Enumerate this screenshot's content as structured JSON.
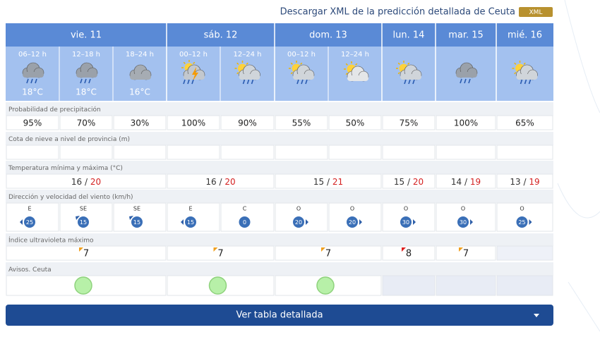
{
  "header": {
    "link": "Descargar XML de la predicción detallada de Ceuta",
    "badge": "XML"
  },
  "table": {
    "row_labels": [
      "Probabilidad de precipitación",
      "Cota de nieve a nivel de provincia (m)",
      "Temperatura mínima y máxima (°C)",
      "Dirección y velocidad del viento (km/h)",
      "Índice ultravioleta máximo",
      "Avisos. Ceuta"
    ],
    "separator": "/",
    "days": [
      {
        "label": "vie. 11",
        "temp_min": 16,
        "temp_max": 20,
        "uv": 7,
        "uv_color": "#f0a020",
        "warning_color": "#b7f0a8",
        "periods": [
          {
            "time": "06–12 h",
            "icon": "rain",
            "temp": "18°C",
            "precip": "95%",
            "wind_dir": "E",
            "wind_speed": 25,
            "arrow": "left"
          },
          {
            "time": "12–18 h",
            "icon": "rain",
            "temp": "18°C",
            "precip": "70%",
            "wind_dir": "SE",
            "wind_speed": 15,
            "arrow": "up-left"
          },
          {
            "time": "18–24 h",
            "icon": "cloudy",
            "temp": "16°C",
            "precip": "30%",
            "wind_dir": "SE",
            "wind_speed": 15,
            "arrow": "up-left"
          }
        ]
      },
      {
        "label": "sáb. 12",
        "temp_min": 16,
        "temp_max": 20,
        "uv": 7,
        "uv_color": "#f0a020",
        "warning_color": "#b7f0a8",
        "periods": [
          {
            "time": "00–12 h",
            "icon": "storm",
            "precip": "100%",
            "wind_dir": "E",
            "wind_speed": 15,
            "arrow": "left"
          },
          {
            "time": "12–24 h",
            "icon": "sun-rain",
            "precip": "90%",
            "wind_dir": "C",
            "wind_speed": 0,
            "arrow": "none"
          }
        ]
      },
      {
        "label": "dom. 13",
        "temp_min": 15,
        "temp_max": 21,
        "uv": 7,
        "uv_color": "#f0a020",
        "warning_color": "#b7f0a8",
        "periods": [
          {
            "time": "00–12 h",
            "icon": "sun-rain",
            "precip": "55%",
            "wind_dir": "O",
            "wind_speed": 20,
            "arrow": "right"
          },
          {
            "time": "12–24 h",
            "icon": "sun-cloud",
            "precip": "50%",
            "wind_dir": "O",
            "wind_speed": 20,
            "arrow": "right"
          }
        ]
      },
      {
        "label": "lun. 14",
        "temp_min": 15,
        "temp_max": 20,
        "uv": 8,
        "uv_color": "#e02020",
        "warning_color": null,
        "periods": [
          {
            "icon": "sun-rain",
            "precip": "75%",
            "wind_dir": "O",
            "wind_speed": 30,
            "arrow": "right"
          }
        ]
      },
      {
        "label": "mar. 15",
        "temp_min": 14,
        "temp_max": 19,
        "uv": 7,
        "uv_color": "#f0a020",
        "warning_color": null,
        "periods": [
          {
            "icon": "rain",
            "precip": "100%",
            "wind_dir": "O",
            "wind_speed": 30,
            "arrow": "right"
          }
        ]
      },
      {
        "label": "mié. 16",
        "temp_min": 13,
        "temp_max": 19,
        "uv": null,
        "warning_color": null,
        "periods": [
          {
            "icon": "sun-rain",
            "precip": "65%",
            "wind_dir": "O",
            "wind_speed": 25,
            "arrow": "right"
          }
        ]
      }
    ]
  },
  "button": "Ver tabla detallada"
}
